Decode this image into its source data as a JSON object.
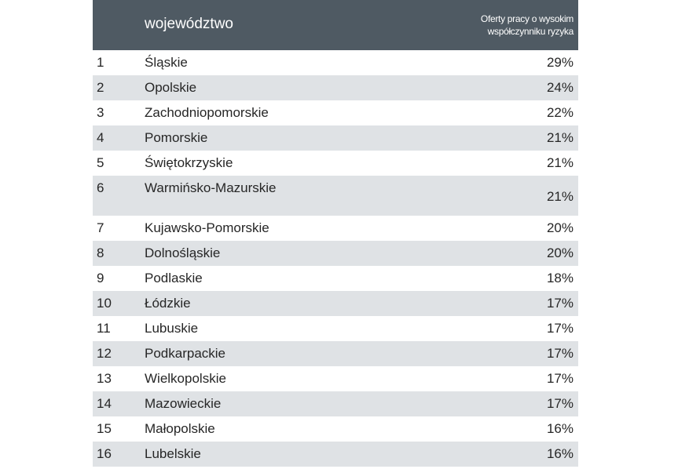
{
  "table": {
    "headers": {
      "rank": "",
      "region": "województwo",
      "value_line1": "Oferty pracy o wysokim",
      "value_line2": "współczynniku ryzyka"
    },
    "rows": [
      {
        "rank": "1",
        "region": "Śląskie",
        "value": "29%"
      },
      {
        "rank": "2",
        "region": "Opolskie",
        "value": "24%"
      },
      {
        "rank": "3",
        "region": "Zachodniopomorskie",
        "value": "22%"
      },
      {
        "rank": "4",
        "region": "Pomorskie",
        "value": "21%"
      },
      {
        "rank": "5",
        "region": "Świętokrzyskie",
        "value": "21%"
      },
      {
        "rank": "6",
        "region": "Warmińsko-Mazurskie",
        "value": "21%"
      },
      {
        "rank": "7",
        "region": "Kujawsko-Pomorskie",
        "value": "20%"
      },
      {
        "rank": "8",
        "region": "Dolnośląskie",
        "value": "20%"
      },
      {
        "rank": "9",
        "region": "Podlaskie",
        "value": "18%"
      },
      {
        "rank": "10",
        "region": "Łódzkie",
        "value": "17%"
      },
      {
        "rank": "11",
        "region": "Lubuskie",
        "value": "17%"
      },
      {
        "rank": "12",
        "region": "Podkarpackie",
        "value": "17%"
      },
      {
        "rank": "13",
        "region": "Wielkopolskie",
        "value": "17%"
      },
      {
        "rank": "14",
        "region": "Mazowieckie",
        "value": "17%"
      },
      {
        "rank": "15",
        "region": "Małopolskie",
        "value": "16%"
      },
      {
        "rank": "16",
        "region": "Lubelskie",
        "value": "16%"
      }
    ]
  },
  "colors": {
    "header_bg": "#4f5a63",
    "header_text": "#ffffff",
    "alt_row_bg": "#dfe2e5",
    "text": "#262626"
  }
}
